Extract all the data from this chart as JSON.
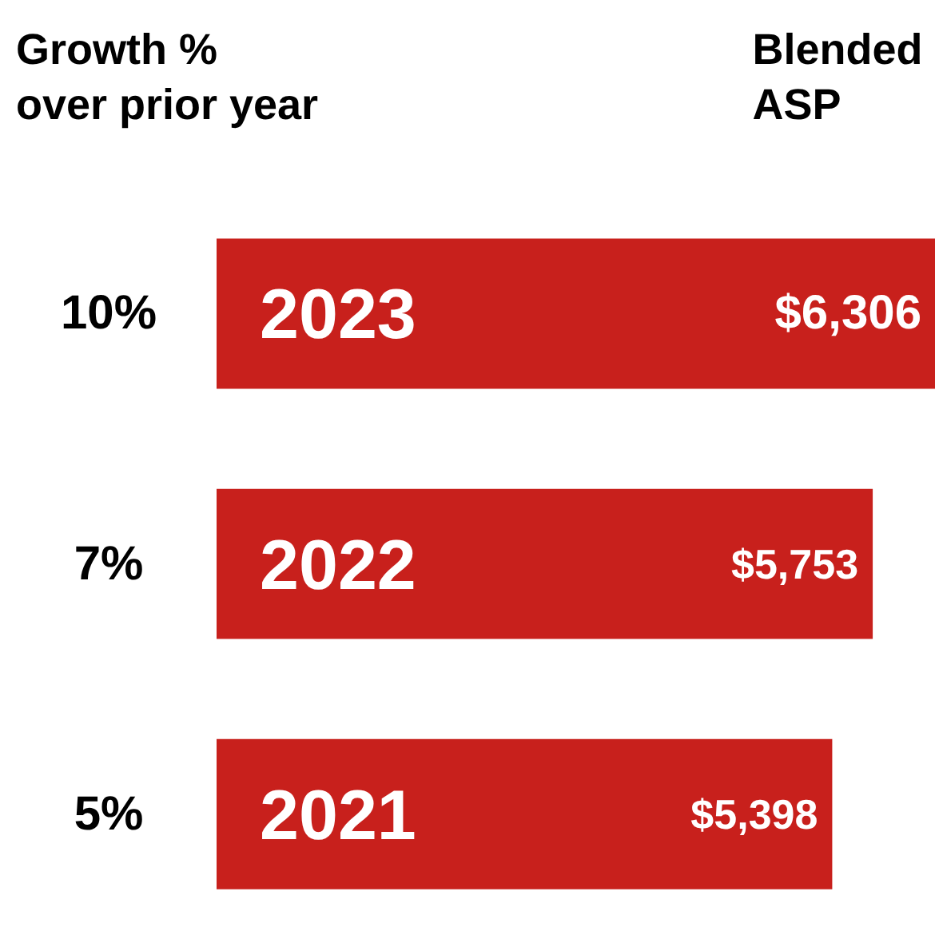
{
  "chart_data": {
    "type": "bar",
    "orientation": "horizontal",
    "ylabel": "Growth %\nover prior year",
    "xlabel": "Blended\nASP",
    "categories": [
      "2023",
      "2022",
      "2021"
    ],
    "values": [
      6306,
      5753,
      5398
    ],
    "value_labels": [
      "$6,306",
      "$5,753",
      "$5,398"
    ],
    "color": "#c8201c",
    "annotations": [
      "10%",
      "7%",
      "5%"
    ],
    "grid": false,
    "tick_labels": false
  }
}
